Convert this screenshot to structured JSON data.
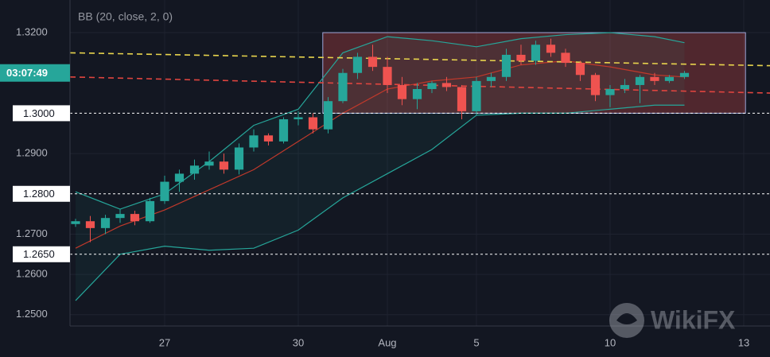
{
  "chart_data": {
    "type": "candlestick",
    "title": "BB (20, close, 2, 0)",
    "countdown": "03:07:49",
    "watermark": "WikiFX",
    "up_color": "#26a69a",
    "down_color": "#ef5350",
    "xlim": [
      -2.125,
      13.59
    ],
    "xticks": [
      {
        "value": 0,
        "label": "27"
      },
      {
        "value": 3,
        "label": "30"
      },
      {
        "value": 5,
        "label": "Aug"
      },
      {
        "value": 7,
        "label": "5"
      },
      {
        "value": 10,
        "label": "10"
      },
      {
        "value": 13,
        "label": "13"
      }
    ],
    "ylim": [
      1.2472,
      1.3281
    ],
    "yticks": [
      {
        "value": 1.32,
        "label": "1.3200"
      },
      {
        "value": 1.29,
        "label": "1.2900"
      },
      {
        "value": 1.27,
        "label": "1.2700"
      },
      {
        "value": 1.26,
        "label": "1.2600"
      },
      {
        "value": 1.25,
        "label": "1.2500"
      }
    ],
    "grid": true,
    "levels": [
      {
        "value": 1.3,
        "label": "1.3000"
      },
      {
        "value": 1.28,
        "label": "1.2800"
      },
      {
        "value": 1.265,
        "label": "1.2650"
      }
    ],
    "x": [
      -2,
      -1.67,
      -1.33,
      -1,
      -0.67,
      -0.33,
      0,
      0.33,
      0.67,
      1,
      1.33,
      1.67,
      2,
      2.33,
      2.67,
      3,
      3.33,
      3.67,
      4,
      4.33,
      4.67,
      5,
      5.33,
      5.67,
      6,
      6.33,
      6.67,
      7,
      7.33,
      7.67,
      8,
      8.33,
      8.67,
      9,
      9.33,
      9.67,
      10,
      10.33,
      10.67,
      11,
      11.33,
      11.67
    ],
    "open": [
      1.2725,
      1.2732,
      1.2715,
      1.274,
      1.275,
      1.2732,
      1.2782,
      1.283,
      1.285,
      1.287,
      1.288,
      1.286,
      1.2915,
      1.2945,
      1.293,
      1.2985,
      1.299,
      1.296,
      1.303,
      1.31,
      1.314,
      1.3115,
      1.307,
      1.3035,
      1.306,
      1.3075,
      1.3065,
      1.3005,
      1.308,
      1.309,
      1.3145,
      1.313,
      1.317,
      1.315,
      1.3125,
      1.3095,
      1.3045,
      1.306,
      1.307,
      1.309,
      1.308,
      1.309
    ],
    "high": [
      1.2738,
      1.2745,
      1.2748,
      1.2762,
      1.2758,
      1.279,
      1.2845,
      1.286,
      1.2885,
      1.2905,
      1.29,
      1.2925,
      1.296,
      1.295,
      1.299,
      1.3005,
      1.3,
      1.304,
      1.311,
      1.315,
      1.317,
      1.314,
      1.309,
      1.3075,
      1.308,
      1.309,
      1.307,
      1.309,
      1.31,
      1.316,
      1.317,
      1.318,
      1.3185,
      1.316,
      1.313,
      1.31,
      1.307,
      1.3085,
      1.3095,
      1.31,
      1.3095,
      1.3105
    ],
    "low": [
      1.2718,
      1.268,
      1.27,
      1.2728,
      1.2722,
      1.2728,
      1.2775,
      1.2805,
      1.2835,
      1.286,
      1.285,
      1.2848,
      1.2905,
      1.292,
      1.2925,
      1.297,
      1.295,
      1.295,
      1.3025,
      1.3085,
      1.3105,
      1.305,
      1.302,
      1.301,
      1.305,
      1.3055,
      1.2985,
      1.2995,
      1.3065,
      1.308,
      1.312,
      1.312,
      1.314,
      1.3115,
      1.308,
      1.303,
      1.3015,
      1.305,
      1.3025,
      1.307,
      1.3075,
      1.3085
    ],
    "close": [
      1.2732,
      1.2715,
      1.274,
      1.275,
      1.2732,
      1.2782,
      1.283,
      1.285,
      1.287,
      1.288,
      1.286,
      1.2915,
      1.2945,
      1.293,
      1.2985,
      1.299,
      1.296,
      1.303,
      1.31,
      1.314,
      1.3115,
      1.307,
      1.3035,
      1.306,
      1.3075,
      1.3065,
      1.3005,
      1.308,
      1.309,
      1.3145,
      1.313,
      1.317,
      1.315,
      1.3125,
      1.3095,
      1.3045,
      1.306,
      1.307,
      1.309,
      1.308,
      1.309,
      1.31
    ],
    "bb_x": [
      -2,
      -1,
      0,
      1,
      2,
      3,
      4,
      5,
      6,
      7,
      8,
      9,
      10,
      11,
      11.67
    ],
    "bb_upper": [
      1.2805,
      1.2762,
      1.28,
      1.288,
      1.297,
      1.301,
      1.315,
      1.319,
      1.318,
      1.3165,
      1.3185,
      1.3195,
      1.32,
      1.319,
      1.3175
    ],
    "bb_mid": [
      1.2665,
      1.272,
      1.276,
      1.281,
      1.286,
      1.293,
      1.3,
      1.306,
      1.308,
      1.309,
      1.312,
      1.313,
      1.3115,
      1.3095,
      1.309
    ],
    "bb_lower": [
      1.2535,
      1.265,
      1.267,
      1.266,
      1.2665,
      1.271,
      1.279,
      1.285,
      1.291,
      1.2995,
      1.3,
      1.3,
      1.301,
      1.302,
      1.302
    ],
    "trendlines": [
      {
        "color": "#e8d44d",
        "x": [
          -2.125,
          13.59
        ],
        "y": [
          1.315,
          1.3118
        ]
      },
      {
        "color": "#e0453f",
        "x": [
          -2.125,
          13.59
        ],
        "y": [
          1.309,
          1.305
        ]
      }
    ],
    "zone": {
      "x": [
        3.55,
        13.04
      ],
      "y": [
        1.3,
        1.32
      ]
    }
  }
}
